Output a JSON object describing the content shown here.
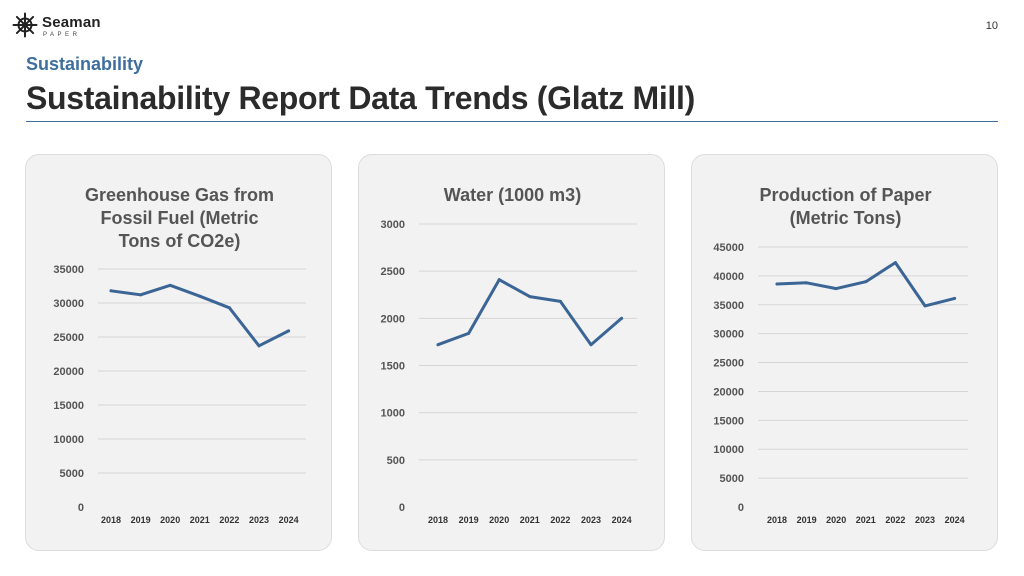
{
  "header": {
    "logo_name": "Seaman",
    "logo_sub": "PAPER",
    "page_number": "10",
    "section": "Sustainability",
    "title": "Sustainability Report Data Trends (Glatz Mill)"
  },
  "colors": {
    "accent": "#3e6f9e",
    "series": "#3a6595",
    "card_bg": "#f2f2f2"
  },
  "chart_data": [
    {
      "type": "line",
      "title": "Greenhouse Gas from Fossil Fuel (Metric Tons of CO2e)",
      "title_lines": [
        "Greenhouse Gas from",
        "Fossil Fuel (Metric",
        "Tons of CO2e)"
      ],
      "categories": [
        "2018",
        "2019",
        "2020",
        "2021",
        "2022",
        "2023",
        "2024"
      ],
      "values": [
        31800,
        31200,
        32600,
        31000,
        29300,
        23700,
        25900
      ],
      "ylim": [
        0,
        35000
      ],
      "yticks": [
        0,
        5000,
        10000,
        15000,
        20000,
        25000,
        30000,
        35000
      ],
      "grid": true
    },
    {
      "type": "line",
      "title": "Water (1000 m3)",
      "title_lines": [
        "Water (1000 m3)"
      ],
      "categories": [
        "2018",
        "2019",
        "2020",
        "2021",
        "2022",
        "2023",
        "2024"
      ],
      "values": [
        1720,
        1840,
        2410,
        2230,
        2180,
        1720,
        2000
      ],
      "ylim": [
        0,
        3000
      ],
      "yticks": [
        0,
        500,
        1000,
        1500,
        2000,
        2500,
        3000
      ],
      "grid": true
    },
    {
      "type": "line",
      "title": "Production of Paper (Metric Tons)",
      "title_lines": [
        "Production of Paper",
        "(Metric Tons)"
      ],
      "categories": [
        "2018",
        "2019",
        "2020",
        "2021",
        "2022",
        "2023",
        "2024"
      ],
      "values": [
        38600,
        38800,
        37800,
        39000,
        42300,
        34800,
        36100
      ],
      "ylim": [
        0,
        45000
      ],
      "yticks": [
        0,
        5000,
        10000,
        15000,
        20000,
        25000,
        30000,
        35000,
        40000,
        45000
      ],
      "grid": true
    }
  ]
}
